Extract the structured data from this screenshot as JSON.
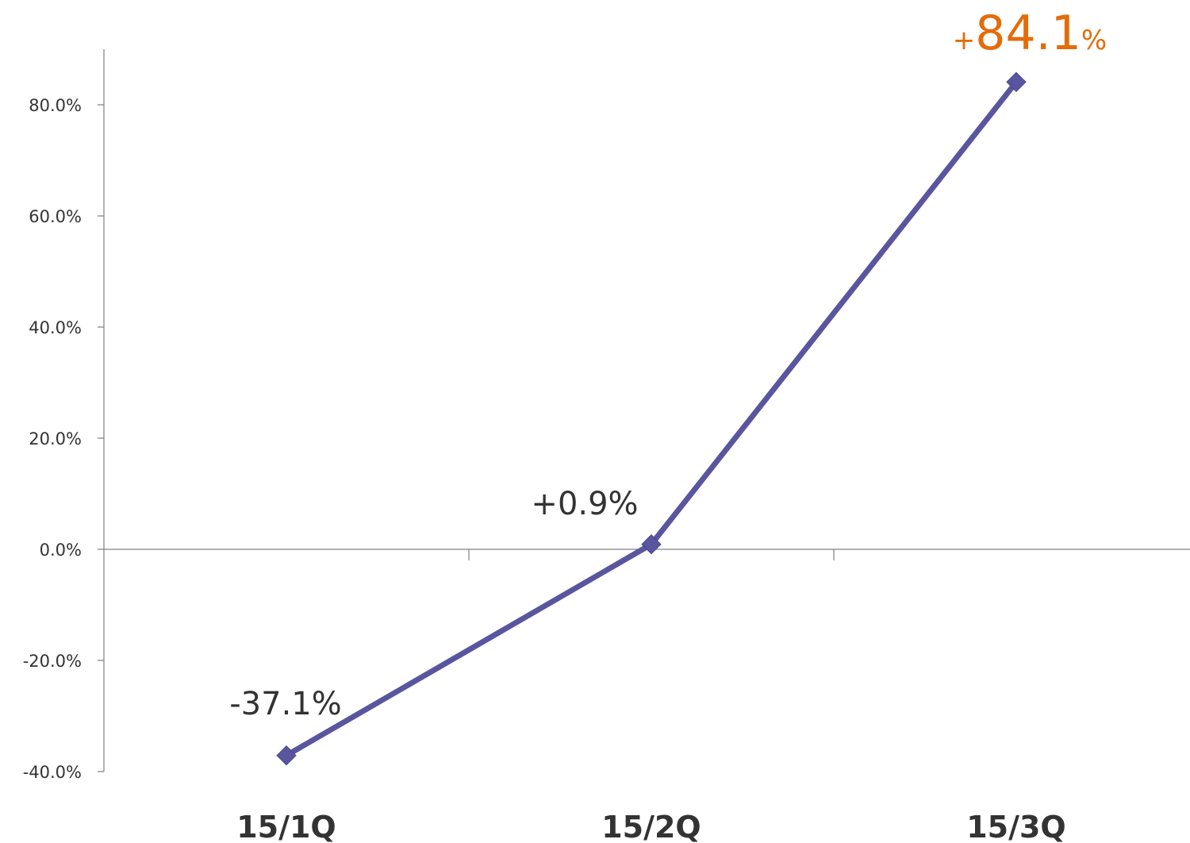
{
  "chart_data": {
    "type": "line",
    "title": "",
    "xlabel": "",
    "ylabel": "",
    "categories": [
      "15/1Q",
      "15/2Q",
      "15/3Q"
    ],
    "series": [
      {
        "values": [
          -37.1,
          0.9,
          84.1
        ],
        "color": "#5a559f"
      }
    ],
    "data_labels": [
      {
        "value": "-37.1%",
        "color": "#333333"
      },
      {
        "value": "+0.9%",
        "color": "#333333"
      },
      {
        "prefix": "+",
        "value": "84.1",
        "suffix": "%",
        "color": "#e36c0a"
      }
    ],
    "ylim": [
      -40,
      90
    ],
    "yticks": [
      -40,
      -20,
      0,
      20,
      40,
      60,
      80
    ],
    "ytick_labels": [
      "-40.0%",
      "-20.0%",
      "0.0%",
      "20.0%",
      "40.0%",
      "60.0%",
      "80.0%"
    ],
    "grid": false,
    "legend": "none",
    "marker": "diamond"
  },
  "colors": {
    "line": "#5a559f",
    "axis": "#7f7f7f",
    "text": "#333333",
    "highlight": "#e36c0a"
  }
}
